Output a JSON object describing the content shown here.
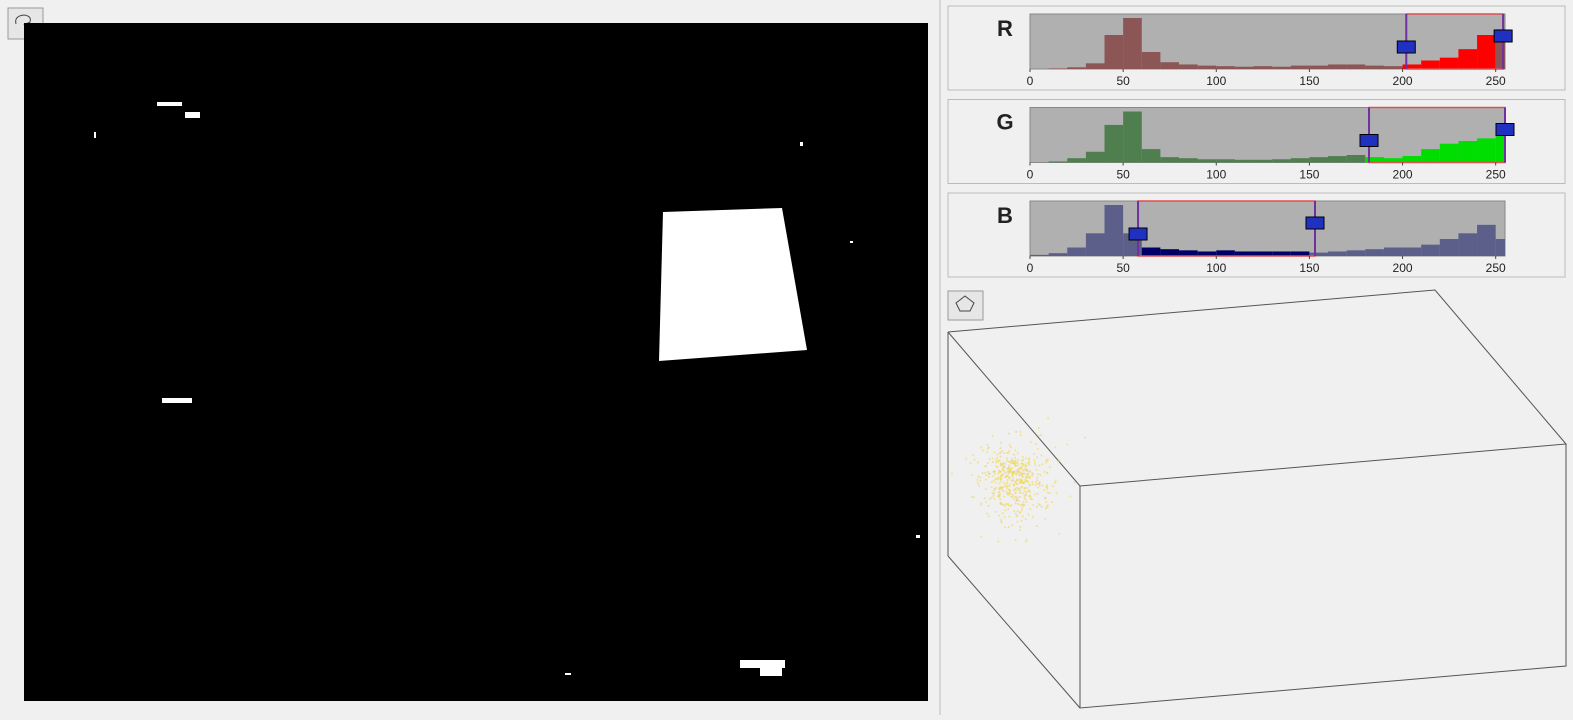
{
  "channels": [
    {
      "label": "R",
      "in_color": "#ff0000",
      "out_color": "#8c5656",
      "xlim": [
        0,
        255
      ],
      "xticks": [
        0,
        50,
        100,
        150,
        200,
        250
      ],
      "range": [
        202,
        254
      ],
      "counts": [
        0,
        1,
        3,
        10,
        60,
        90,
        30,
        12,
        8,
        6,
        5,
        4,
        5,
        4,
        6,
        6,
        8,
        8,
        6,
        5,
        8,
        15,
        20,
        35,
        60,
        70
      ]
    },
    {
      "label": "G",
      "in_color": "#00dd00",
      "out_color": "#4f7f4f",
      "xlim": [
        0,
        255
      ],
      "xticks": [
        0,
        50,
        100,
        150,
        200,
        250
      ],
      "range": [
        182,
        255
      ],
      "counts": [
        0,
        2,
        8,
        20,
        70,
        95,
        25,
        10,
        8,
        6,
        6,
        5,
        5,
        6,
        8,
        10,
        12,
        14,
        10,
        8,
        12,
        25,
        35,
        40,
        45,
        60
      ]
    },
    {
      "label": "B",
      "in_color": "#000066",
      "out_color": "#5b5f8a",
      "xlim": [
        0,
        255
      ],
      "xticks": [
        0,
        50,
        100,
        150,
        200,
        250
      ],
      "range": [
        58,
        153
      ],
      "counts": [
        2,
        5,
        15,
        40,
        90,
        40,
        15,
        12,
        10,
        8,
        10,
        8,
        8,
        8,
        8,
        6,
        8,
        10,
        12,
        15,
        15,
        20,
        30,
        40,
        55,
        30
      ]
    }
  ]
}
